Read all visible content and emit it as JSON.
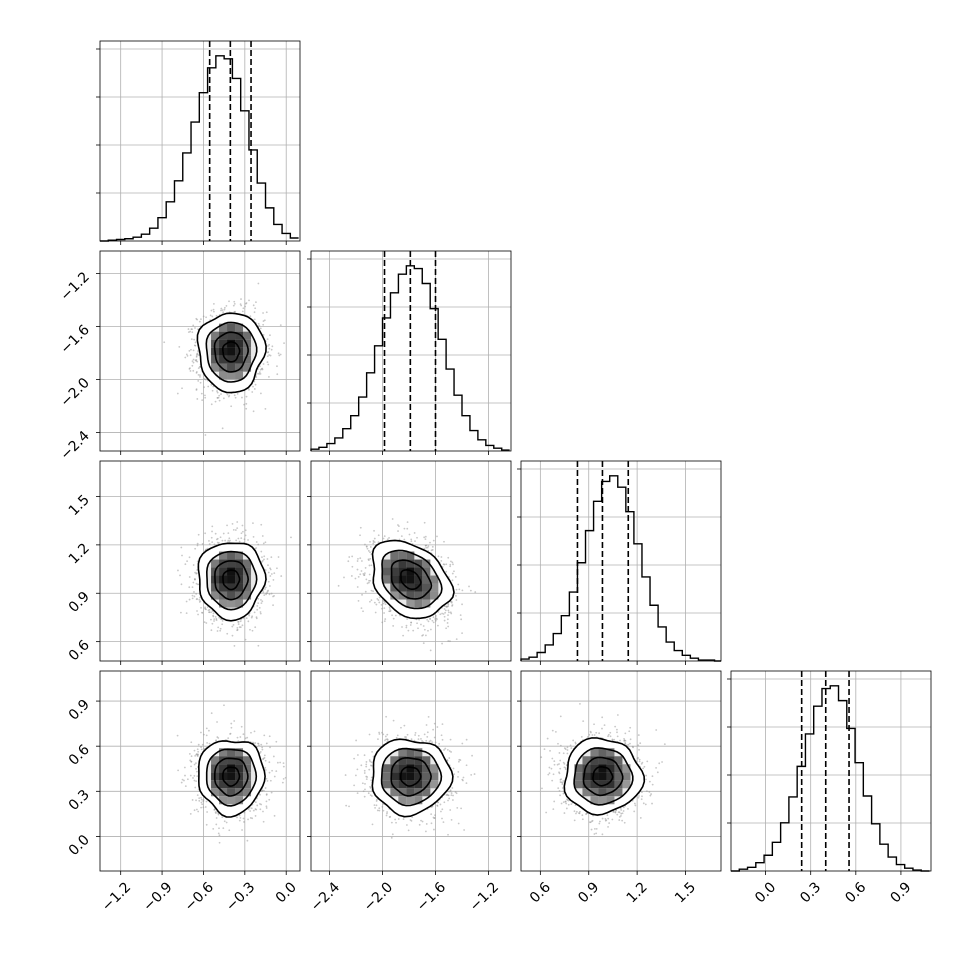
{
  "chart_data": {
    "type": "corner",
    "grid": true,
    "parameters": [
      {
        "range": [
          -1.35,
          0.1
        ],
        "ticks": [
          -1.2,
          -0.9,
          -0.6,
          -0.3,
          0.0
        ],
        "tick_labels": [
          "−1.2",
          "−0.9",
          "−0.6",
          "−0.3",
          "0.0"
        ],
        "mean": -0.4,
        "std": 0.12,
        "quantiles": [
          -0.555,
          -0.405,
          -0.255
        ]
      },
      {
        "range": [
          -2.54,
          -1.03
        ],
        "ticks": [
          -2.4,
          -2.0,
          -1.6,
          -1.2
        ],
        "tick_labels": [
          "−2.4",
          "−2.0",
          "−1.6",
          "−1.2"
        ],
        "mean": -1.79,
        "std": 0.15,
        "quantiles": [
          -1.985,
          -1.79,
          -1.6
        ]
      },
      {
        "range": [
          0.48,
          1.72
        ],
        "ticks": [
          0.6,
          0.9,
          1.2,
          1.5
        ],
        "tick_labels": [
          "0.6",
          "0.9",
          "1.2",
          "1.5"
        ],
        "mean": 0.985,
        "std": 0.12,
        "quantiles": [
          0.83,
          0.985,
          1.145
        ]
      },
      {
        "range": [
          -0.23,
          1.1
        ],
        "ticks": [
          0.0,
          0.3,
          0.6,
          0.9
        ],
        "tick_labels": [
          "0.0",
          "0.3",
          "0.6",
          "0.9"
        ],
        "mean": 0.4,
        "std": 0.125,
        "quantiles": [
          0.24,
          0.4,
          0.555
        ]
      }
    ],
    "histograms": [
      {
        "param": 0,
        "edges": [
          -1.35,
          -1.29,
          -1.23,
          -1.17,
          -1.11,
          -1.05,
          -0.99,
          -0.93,
          -0.87,
          -0.81,
          -0.75,
          -0.69,
          -0.63,
          -0.57,
          -0.51,
          -0.45,
          -0.39,
          -0.33,
          -0.27,
          -0.21,
          -0.15,
          -0.09,
          -0.03,
          0.03,
          0.09
        ],
        "counts": [
          0,
          1,
          2,
          3,
          5,
          9,
          17,
          31,
          52,
          80,
          117,
          158,
          197,
          230,
          246,
          242,
          216,
          173,
          121,
          77,
          44,
          22,
          10,
          4
        ]
      },
      {
        "param": 1,
        "edges": [
          -2.54,
          -2.48,
          -2.42,
          -2.36,
          -2.3,
          -2.24,
          -2.18,
          -2.12,
          -2.06,
          -2.0,
          -1.94,
          -1.88,
          -1.82,
          -1.76,
          -1.7,
          -1.64,
          -1.58,
          -1.52,
          -1.46,
          -1.4,
          -1.34,
          -1.28,
          -1.22,
          -1.16,
          -1.1,
          -1.04
        ],
        "counts": [
          2,
          4,
          8,
          14,
          24,
          38,
          58,
          84,
          113,
          143,
          170,
          190,
          199,
          196,
          180,
          153,
          120,
          88,
          60,
          38,
          22,
          12,
          6,
          3,
          1
        ]
      },
      {
        "param": 2,
        "edges": [
          0.48,
          0.53,
          0.58,
          0.63,
          0.68,
          0.73,
          0.78,
          0.83,
          0.88,
          0.93,
          0.98,
          1.03,
          1.08,
          1.13,
          1.18,
          1.23,
          1.28,
          1.33,
          1.38,
          1.43,
          1.48,
          1.53,
          1.58,
          1.63,
          1.68,
          1.73
        ],
        "counts": [
          2,
          4,
          9,
          17,
          29,
          48,
          73,
          104,
          138,
          169,
          190,
          196,
          184,
          158,
          124,
          89,
          59,
          36,
          20,
          11,
          6,
          3,
          1,
          1,
          0
        ]
      },
      {
        "param": 3,
        "edges": [
          -0.23,
          -0.175,
          -0.12,
          -0.065,
          -0.01,
          0.045,
          0.1,
          0.155,
          0.21,
          0.265,
          0.32,
          0.375,
          0.43,
          0.485,
          0.54,
          0.595,
          0.65,
          0.705,
          0.76,
          0.815,
          0.87,
          0.925,
          0.98,
          1.035,
          1.09
        ],
        "counts": [
          0,
          2,
          4,
          9,
          17,
          31,
          52,
          80,
          113,
          148,
          178,
          197,
          200,
          184,
          154,
          117,
          81,
          51,
          29,
          15,
          7,
          3,
          1,
          0
        ]
      }
    ],
    "pairs": [
      {
        "x": 0,
        "y": 1,
        "cx": -0.4,
        "cy": -1.79,
        "sx": 0.12,
        "sy": 0.15,
        "rho": 0.0
      },
      {
        "x": 0,
        "y": 2,
        "cx": -0.4,
        "cy": 0.985,
        "sx": 0.12,
        "sy": 0.12,
        "rho": 0.0
      },
      {
        "x": 1,
        "y": 2,
        "cx": -1.79,
        "cy": 0.985,
        "sx": 0.15,
        "sy": 0.12,
        "rho": -0.3
      },
      {
        "x": 0,
        "y": 3,
        "cx": -0.4,
        "cy": 0.4,
        "sx": 0.12,
        "sy": 0.125,
        "rho": 0.0
      },
      {
        "x": 1,
        "y": 3,
        "cx": -1.79,
        "cy": 0.4,
        "sx": 0.15,
        "sy": 0.125,
        "rho": 0.0
      },
      {
        "x": 2,
        "y": 3,
        "cx": 0.985,
        "cy": 0.4,
        "sx": 0.12,
        "sy": 0.125,
        "rho": 0.0
      }
    ],
    "contour_levels_sigma": [
      0.5,
      1.0,
      1.5,
      2.0
    ]
  }
}
